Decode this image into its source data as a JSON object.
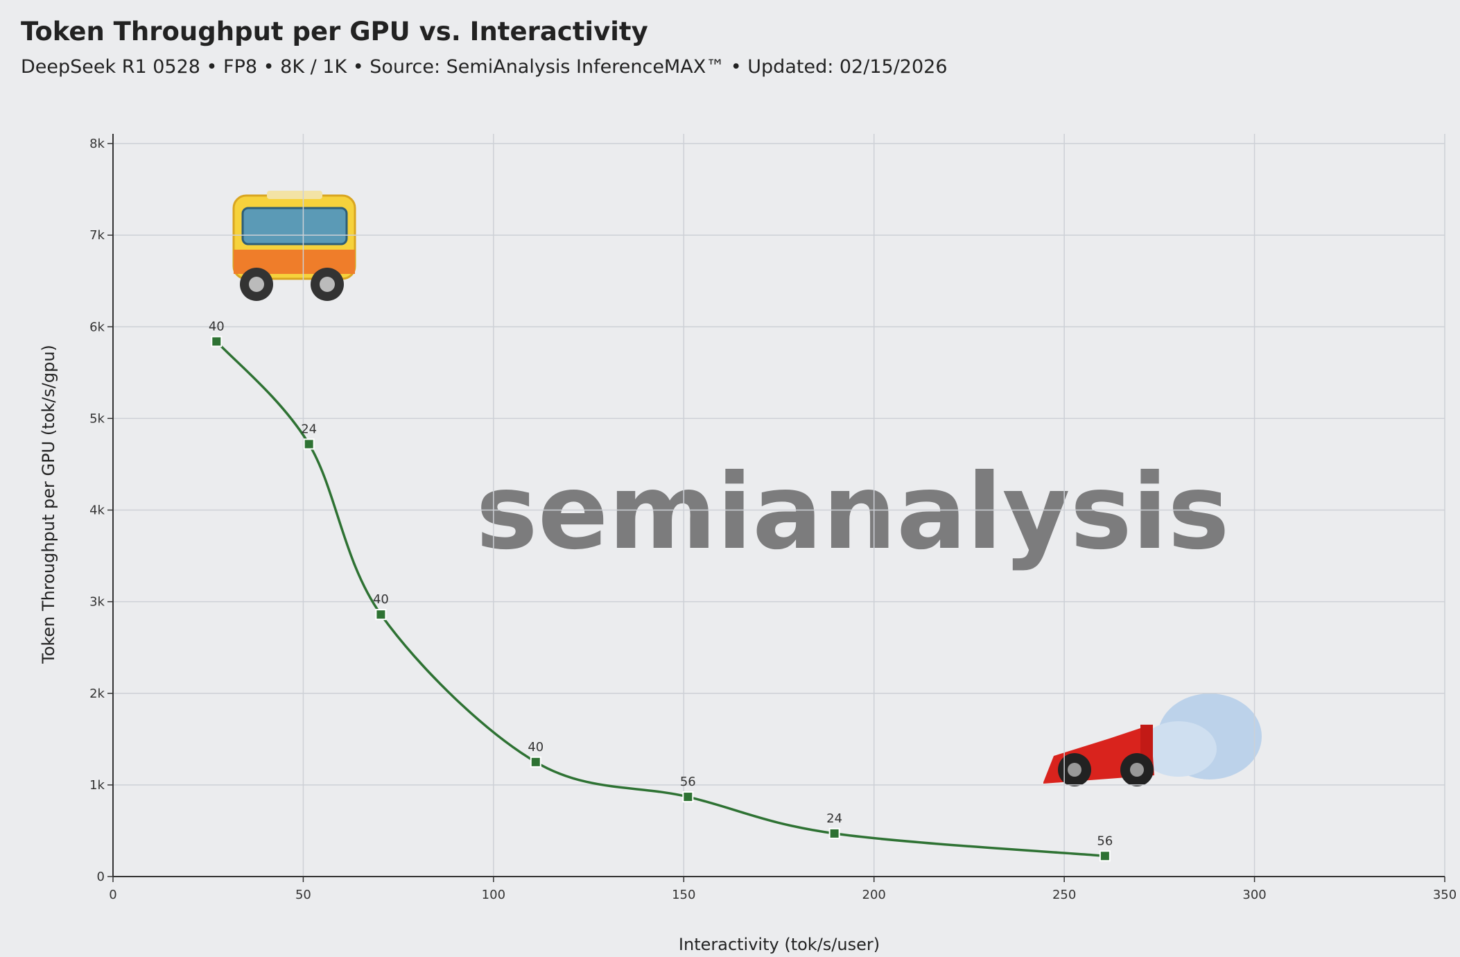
{
  "chart_data": {
    "type": "line",
    "title": "Token Throughput per GPU vs. Interactivity",
    "subtitle": "DeepSeek R1 0528 • FP8 • 8K / 1K • Source: SemiAnalysis InferenceMAX™ • Updated: 02/15/2026",
    "x_label": "Interactivity (tok/s/user)",
    "y_label": "Token Throughput per GPU (tok/s/gpu)",
    "watermark": "semianalysis",
    "series": [
      {
        "x": [
          27.2,
          51.5,
          70.4,
          111.1,
          151.1,
          189.6,
          260.7
        ],
        "values": [
          5840,
          4720,
          2860,
          1250,
          870,
          470,
          225
        ],
        "point_labels": [
          40,
          24,
          40,
          40,
          56,
          24,
          56
        ],
        "color": "#2e7233"
      }
    ],
    "xlim": [
      0,
      350
    ],
    "xticks": [
      0,
      50,
      100,
      150,
      200,
      250,
      300,
      350
    ],
    "ylim": [
      0,
      8000
    ],
    "yticks": [
      0,
      {
        "value": 1000,
        "label": "1k"
      },
      {
        "value": 2000,
        "label": "2k"
      },
      {
        "value": 3000,
        "label": "3k"
      },
      {
        "value": 4000,
        "label": "4k"
      },
      {
        "value": 5000,
        "label": "5k"
      },
      {
        "value": 6000,
        "label": "6k"
      },
      {
        "value": 7000,
        "label": "7k"
      },
      {
        "value": 8000,
        "label": "8k"
      }
    ],
    "grid": true
  }
}
